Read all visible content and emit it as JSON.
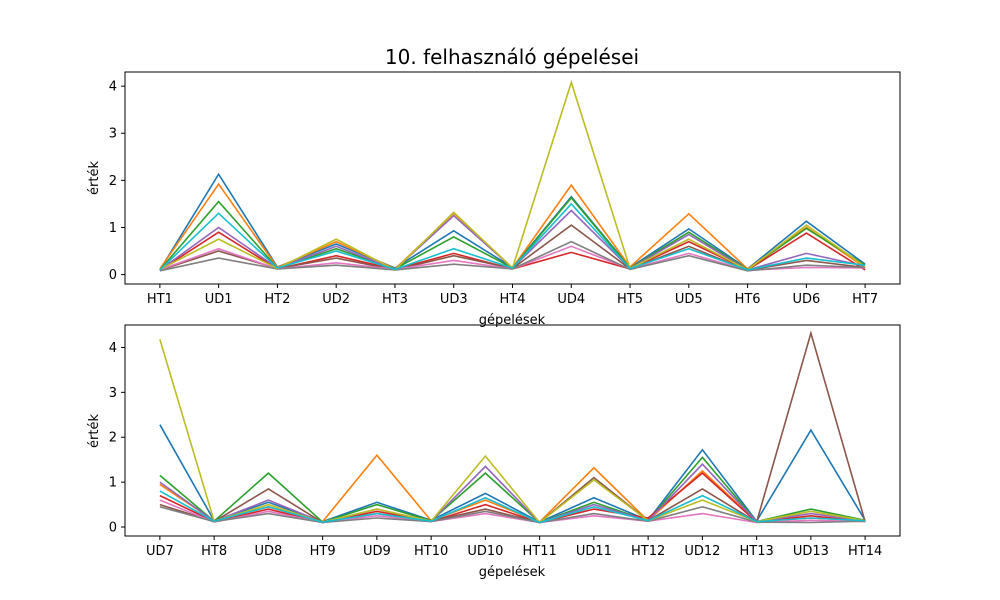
{
  "figure": {
    "title": "10. felhasználó gépelései"
  },
  "chart_data": [
    {
      "type": "line",
      "xlabel": "gépelések",
      "ylabel": "érték",
      "categories": [
        "HT1",
        "UD1",
        "HT2",
        "UD2",
        "HT3",
        "UD3",
        "HT4",
        "UD4",
        "HT5",
        "UD5",
        "HT6",
        "UD6",
        "HT7"
      ],
      "ylim": [
        -0.2,
        4.3
      ],
      "yticks": [
        0,
        1,
        2,
        3,
        4
      ],
      "series": [
        {
          "color": "#1f77b4",
          "values": [
            0.1,
            2.13,
            0.16,
            0.65,
            0.14,
            0.93,
            0.15,
            1.65,
            0.15,
            0.97,
            0.12,
            1.13,
            0.22
          ]
        },
        {
          "color": "#ff7f0e",
          "values": [
            0.12,
            1.92,
            0.15,
            0.7,
            0.12,
            1.3,
            0.14,
            1.9,
            0.16,
            1.29,
            0.12,
            1.0,
            0.15
          ]
        },
        {
          "color": "#2ca02c",
          "values": [
            0.1,
            1.55,
            0.14,
            0.55,
            0.12,
            0.8,
            0.14,
            1.63,
            0.14,
            0.9,
            0.11,
            0.98,
            0.2
          ]
        },
        {
          "color": "#d62728",
          "values": [
            0.09,
            0.9,
            0.12,
            0.4,
            0.11,
            0.45,
            0.12,
            0.47,
            0.12,
            0.7,
            0.1,
            0.88,
            0.1
          ]
        },
        {
          "color": "#9467bd",
          "values": [
            0.1,
            1.0,
            0.14,
            0.6,
            0.11,
            1.25,
            0.14,
            1.36,
            0.13,
            0.85,
            0.1,
            0.45,
            0.18
          ]
        },
        {
          "color": "#8c564b",
          "values": [
            0.09,
            0.5,
            0.13,
            0.35,
            0.1,
            0.4,
            0.13,
            1.05,
            0.12,
            0.6,
            0.09,
            0.3,
            0.15
          ]
        },
        {
          "color": "#e377c2",
          "values": [
            0.1,
            0.55,
            0.12,
            0.25,
            0.11,
            0.3,
            0.12,
            0.6,
            0.12,
            0.45,
            0.09,
            0.15,
            0.14
          ]
        },
        {
          "color": "#7f7f7f",
          "values": [
            0.08,
            0.35,
            0.12,
            0.2,
            0.1,
            0.22,
            0.12,
            0.7,
            0.11,
            0.4,
            0.08,
            0.2,
            0.15
          ]
        },
        {
          "color": "#bcbd22",
          "values": [
            0.11,
            0.75,
            0.13,
            0.75,
            0.1,
            1.32,
            0.14,
            4.08,
            0.13,
            0.75,
            0.1,
            1.05,
            0.17
          ]
        },
        {
          "color": "#17becf",
          "values": [
            0.1,
            1.3,
            0.14,
            0.5,
            0.11,
            0.55,
            0.14,
            1.5,
            0.13,
            0.55,
            0.1,
            0.35,
            0.2
          ]
        }
      ]
    },
    {
      "type": "line",
      "xlabel": "gépelések",
      "ylabel": "érték",
      "categories": [
        "UD7",
        "HT8",
        "UD8",
        "HT9",
        "UD9",
        "HT10",
        "UD10",
        "HT11",
        "UD11",
        "HT12",
        "UD12",
        "HT13",
        "UD13",
        "HT14"
      ],
      "ylim": [
        -0.2,
        4.5
      ],
      "yticks": [
        0,
        1,
        2,
        3,
        4
      ],
      "series": [
        {
          "color": "#1f77b4",
          "values": [
            2.28,
            0.14,
            0.55,
            0.12,
            0.55,
            0.15,
            0.75,
            0.11,
            0.65,
            0.15,
            1.72,
            0.13,
            2.16,
            0.15
          ]
        },
        {
          "color": "#ff7f0e",
          "values": [
            0.95,
            0.14,
            0.45,
            0.12,
            1.6,
            0.14,
            0.6,
            0.11,
            1.32,
            0.14,
            1.25,
            0.12,
            0.2,
            0.14
          ]
        },
        {
          "color": "#2ca02c",
          "values": [
            1.15,
            0.13,
            1.2,
            0.11,
            0.5,
            0.14,
            1.2,
            0.1,
            0.55,
            0.14,
            1.55,
            0.12,
            0.4,
            0.15
          ]
        },
        {
          "color": "#d62728",
          "values": [
            0.7,
            0.12,
            0.4,
            0.1,
            0.35,
            0.12,
            0.5,
            0.1,
            0.4,
            0.2,
            1.2,
            0.11,
            0.25,
            0.12
          ]
        },
        {
          "color": "#9467bd",
          "values": [
            1.0,
            0.13,
            0.6,
            0.11,
            0.4,
            0.13,
            1.35,
            0.1,
            0.5,
            0.14,
            1.4,
            0.12,
            0.3,
            0.14
          ]
        },
        {
          "color": "#8c564b",
          "values": [
            0.5,
            0.12,
            0.85,
            0.1,
            0.3,
            0.13,
            0.4,
            0.1,
            1.1,
            0.14,
            0.85,
            0.11,
            4.32,
            0.12
          ]
        },
        {
          "color": "#e377c2",
          "values": [
            0.6,
            0.11,
            0.35,
            0.1,
            0.25,
            0.12,
            0.3,
            0.1,
            0.25,
            0.13,
            0.3,
            0.1,
            0.15,
            0.12
          ]
        },
        {
          "color": "#7f7f7f",
          "values": [
            0.45,
            0.12,
            0.3,
            0.1,
            0.2,
            0.12,
            0.35,
            0.1,
            0.3,
            0.13,
            0.45,
            0.11,
            0.1,
            0.13
          ]
        },
        {
          "color": "#bcbd22",
          "values": [
            4.18,
            0.13,
            0.5,
            0.11,
            0.4,
            0.13,
            1.58,
            0.1,
            1.05,
            0.14,
            0.6,
            0.12,
            0.35,
            0.14
          ]
        },
        {
          "color": "#17becf",
          "values": [
            0.8,
            0.13,
            0.45,
            0.11,
            0.3,
            0.13,
            0.65,
            0.1,
            0.45,
            0.14,
            0.7,
            0.12,
            0.2,
            0.14
          ]
        }
      ]
    }
  ]
}
